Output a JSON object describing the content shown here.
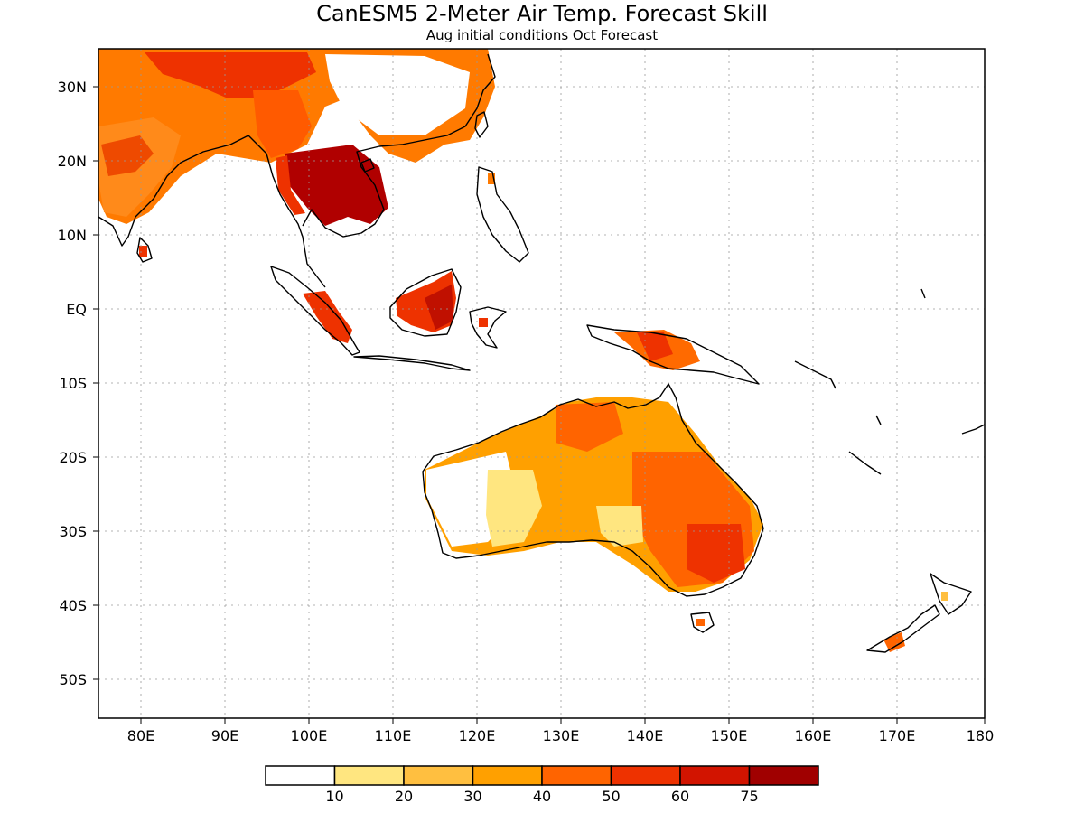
{
  "title": "CanESM5 2-Meter Air Temp. Forecast Skill",
  "subtitle": "Aug initial conditions  Oct Forecast",
  "lon_labels": [
    "80E",
    "90E",
    "100E",
    "110E",
    "120E",
    "130E",
    "140E",
    "150E",
    "160E",
    "170E",
    "180"
  ],
  "lat_labels": [
    "30N",
    "20N",
    "10N",
    "EQ",
    "10S",
    "20S",
    "30S",
    "40S",
    "50S"
  ],
  "colorbar": {
    "colors": [
      "#ffffff",
      "#ffe680",
      "#ffbf40",
      "#ffa000",
      "#ff6400",
      "#ee3200",
      "#d21400",
      "#a00000"
    ],
    "labels": [
      "10",
      "20",
      "30",
      "40",
      "50",
      "60",
      "75"
    ]
  }
}
